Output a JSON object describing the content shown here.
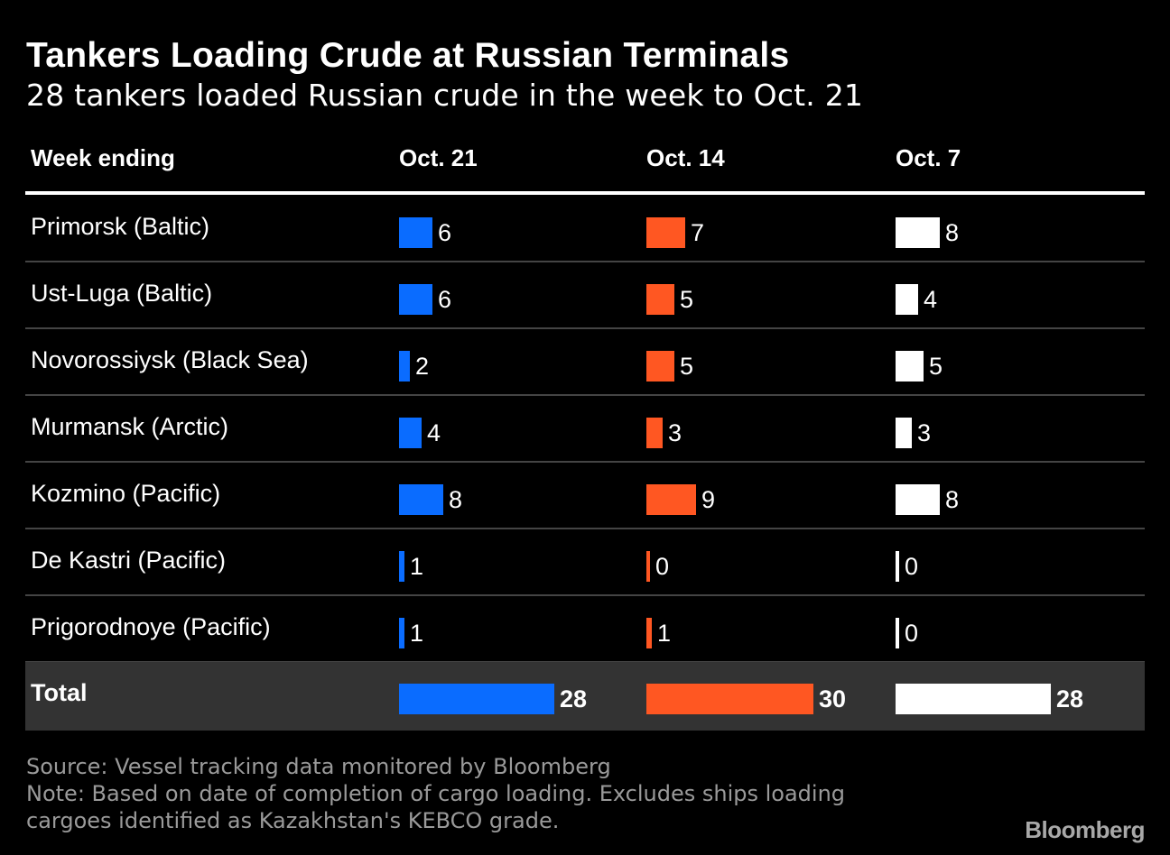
{
  "title": "Tankers Loading Crude at Russian Terminals",
  "subtitle": "28 tankers loaded Russian crude in the week to Oct. 21",
  "source": "Source: Vessel tracking data monitored by Bloomberg",
  "note_line1": "Note: Based on date of completion of cargo loading. Excludes ships loading",
  "note_line2": "cargoes identified as Kazakhstan's KEBCO grade.",
  "brand": "Bloomberg",
  "colors": {
    "oct21": "#0a6cff",
    "oct14": "#ff5722",
    "oct7": "#ffffff"
  },
  "chart_data": {
    "type": "table",
    "row_header": "Week ending",
    "columns": [
      "Oct. 21",
      "Oct. 14",
      "Oct. 7"
    ],
    "rows": [
      {
        "label": "Primorsk (Baltic)",
        "values": [
          6,
          7,
          8
        ]
      },
      {
        "label": "Ust-Luga (Baltic)",
        "values": [
          6,
          5,
          4
        ]
      },
      {
        "label": "Novorossiysk (Black Sea)",
        "values": [
          2,
          5,
          5
        ]
      },
      {
        "label": "Murmansk (Arctic)",
        "values": [
          4,
          3,
          3
        ]
      },
      {
        "label": "Kozmino (Pacific)",
        "values": [
          8,
          9,
          8
        ]
      },
      {
        "label": "De Kastri (Pacific)",
        "values": [
          1,
          0,
          0
        ]
      },
      {
        "label": "Prigorodnoye (Pacific)",
        "values": [
          1,
          1,
          0
        ]
      }
    ],
    "total": {
      "label": "Total",
      "values": [
        28,
        30,
        28
      ]
    }
  }
}
